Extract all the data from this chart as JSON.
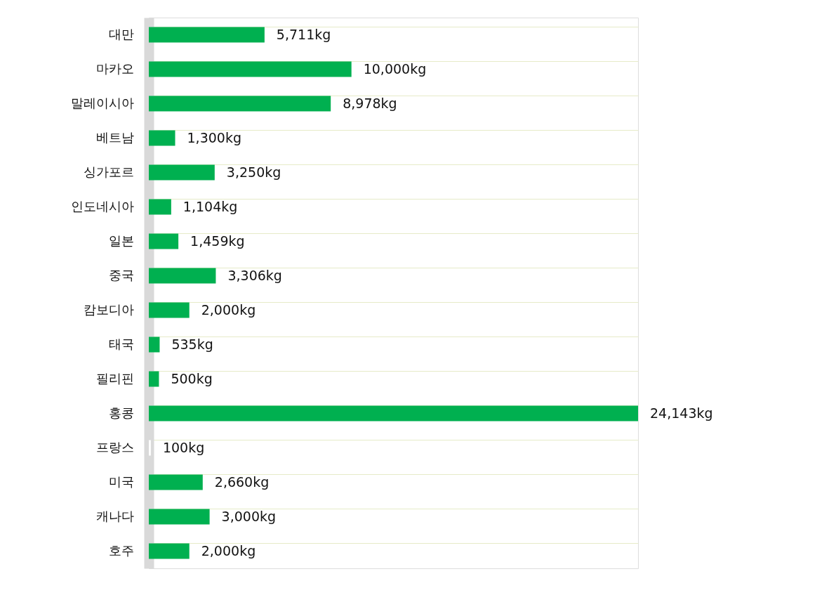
{
  "chart_data": {
    "type": "bar",
    "orientation": "horizontal",
    "categories": [
      "대만",
      "마카오",
      "말레이시아",
      "베트남",
      "싱가포르",
      "인도네시아",
      "일본",
      "중국",
      "캄보디아",
      "태국",
      "필리핀",
      "홍콩",
      "프랑스",
      "미국",
      "캐나다",
      "호주"
    ],
    "values": [
      5711,
      10000,
      8978,
      1300,
      3250,
      1104,
      1459,
      3306,
      2000,
      535,
      500,
      24143,
      100,
      2660,
      3000,
      2000
    ],
    "value_labels": [
      "5,711kg",
      "10,000kg",
      "8,978kg",
      "1,300kg",
      "3,250kg",
      "1,104kg",
      "1,459kg",
      "3,306kg",
      "2,000kg",
      "535kg",
      "500kg",
      "24,143kg",
      "100kg",
      "2,660kg",
      "3,000kg",
      "2,000kg"
    ],
    "colors": [
      "#00b050",
      "#00b050",
      "#00b050",
      "#00b050",
      "#00b050",
      "#00b050",
      "#00b050",
      "#00b050",
      "#00b050",
      "#00b050",
      "#00b050",
      "#00b050",
      "#ffffff",
      "#00b050",
      "#00b050",
      "#00b050"
    ],
    "grid": "y"
  }
}
